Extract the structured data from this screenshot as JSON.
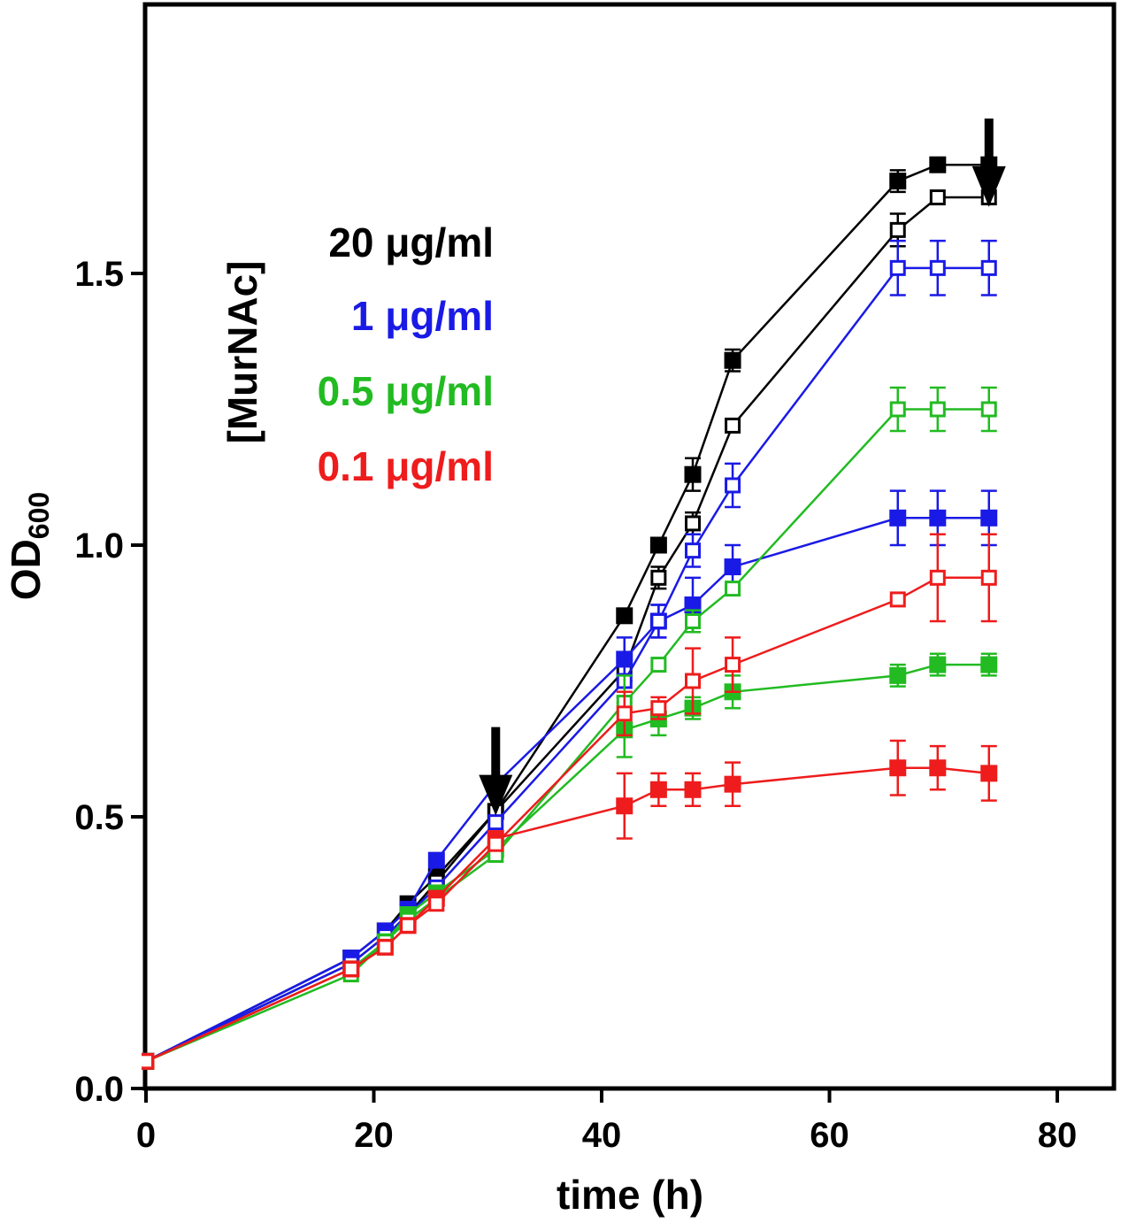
{
  "chart_data": {
    "type": "line",
    "title": "",
    "xlabel": "time (h)",
    "ylabel_main": "OD",
    "ylabel_sub": "600",
    "xlim": [
      0,
      85
    ],
    "ylim": [
      0,
      2.0
    ],
    "xticks": [
      0,
      20,
      40,
      60,
      80
    ],
    "xtick_labels": [
      "0",
      "20",
      "40",
      "60",
      "80"
    ],
    "yticks": [
      0.0,
      0.5,
      1.0,
      1.5
    ],
    "ytick_labels": [
      "0.0",
      "0.5",
      "1.0",
      "1.5"
    ],
    "grid": false,
    "legend_title": "[MurNAc]",
    "legend": [
      {
        "label": "20 μg/ml",
        "color": "#000000"
      },
      {
        "label": "1 μg/ml",
        "color": "#1a1ae6"
      },
      {
        "label": "0.5 μg/ml",
        "color": "#22bb22"
      },
      {
        "label": "0.1 μg/ml",
        "color": "#ee1c1c"
      }
    ],
    "arrows": [
      {
        "x": 30.7,
        "y": 0.6
      },
      {
        "x": 74.0,
        "y": 1.72
      }
    ],
    "series": [
      {
        "name": "20 μg/ml filled",
        "color": "#000000",
        "filled": true,
        "x": [
          0,
          18,
          21,
          23,
          25.5,
          30.7,
          42,
          45,
          48,
          51.5,
          66,
          69.5,
          74
        ],
        "y": [
          0.05,
          0.24,
          0.29,
          0.34,
          0.39,
          0.51,
          0.87,
          1.0,
          1.13,
          1.34,
          1.67,
          1.7,
          1.7
        ],
        "err": [
          0,
          0,
          0,
          0,
          0,
          0,
          0.01,
          0.01,
          0.03,
          0.02,
          0.02,
          0,
          0
        ]
      },
      {
        "name": "20 μg/ml open",
        "color": "#000000",
        "filled": false,
        "x": [
          0,
          18,
          21,
          23,
          25.5,
          30.7,
          42,
          45,
          48,
          51.5,
          66,
          69.5,
          74
        ],
        "y": [
          0.05,
          0.23,
          0.28,
          0.32,
          0.38,
          0.51,
          0.77,
          0.94,
          1.04,
          1.22,
          1.58,
          1.64,
          1.64
        ],
        "err": [
          0,
          0,
          0,
          0,
          0,
          0,
          0.02,
          0.02,
          0.02,
          0,
          0.03,
          0,
          0
        ]
      },
      {
        "name": "1 μg/ml filled",
        "color": "#1a1ae6",
        "filled": true,
        "x": [
          0,
          18,
          21,
          23,
          25.5,
          30.7,
          42,
          45,
          48,
          51.5,
          66,
          69.5,
          74
        ],
        "y": [
          0.05,
          0.24,
          0.29,
          0.33,
          0.42,
          0.56,
          0.79,
          0.86,
          0.89,
          0.96,
          1.05,
          1.05,
          1.05
        ],
        "err": [
          0,
          0,
          0,
          0,
          0,
          0,
          0.04,
          0.03,
          0.05,
          0.04,
          0.05,
          0.05,
          0.05
        ]
      },
      {
        "name": "1 μg/ml open",
        "color": "#1a1ae6",
        "filled": false,
        "x": [
          0,
          18,
          21,
          23,
          25.5,
          30.7,
          42,
          45,
          48,
          51.5,
          66,
          69.5,
          74
        ],
        "y": [
          0.05,
          0.23,
          0.28,
          0.32,
          0.37,
          0.49,
          0.75,
          0.86,
          0.99,
          1.11,
          1.51,
          1.51,
          1.51
        ],
        "err": [
          0,
          0,
          0,
          0,
          0,
          0,
          0.03,
          0.03,
          0.03,
          0.04,
          0.05,
          0.05,
          0.05
        ]
      },
      {
        "name": "0.5 μg/ml filled",
        "color": "#22bb22",
        "filled": true,
        "x": [
          0,
          18,
          21,
          23,
          25.5,
          30.7,
          42,
          45,
          48,
          51.5,
          66,
          69.5,
          74
        ],
        "y": [
          0.05,
          0.22,
          0.27,
          0.32,
          0.36,
          0.44,
          0.66,
          0.68,
          0.7,
          0.73,
          0.76,
          0.78,
          0.78
        ],
        "err": [
          0,
          0,
          0,
          0,
          0,
          0,
          0.05,
          0.03,
          0.02,
          0.03,
          0.02,
          0.02,
          0.02
        ]
      },
      {
        "name": "0.5 μg/ml open",
        "color": "#22bb22",
        "filled": false,
        "x": [
          0,
          18,
          21,
          23,
          25.5,
          30.7,
          42,
          45,
          48,
          51.5,
          66,
          69.5,
          74
        ],
        "y": [
          0.05,
          0.21,
          0.27,
          0.31,
          0.35,
          0.43,
          0.71,
          0.78,
          0.86,
          0.92,
          1.25,
          1.25,
          1.25
        ],
        "err": [
          0,
          0,
          0,
          0,
          0,
          0,
          0.05,
          0,
          0.02,
          0,
          0.04,
          0.04,
          0.04
        ]
      },
      {
        "name": "0.1 μg/ml filled",
        "color": "#ee1c1c",
        "filled": true,
        "x": [
          0,
          18,
          21,
          23,
          25.5,
          30.7,
          42,
          45,
          48,
          51.5,
          66,
          69.5,
          74
        ],
        "y": [
          0.05,
          0.22,
          0.26,
          0.3,
          0.35,
          0.46,
          0.52,
          0.55,
          0.55,
          0.56,
          0.59,
          0.59,
          0.58
        ],
        "err": [
          0,
          0,
          0,
          0,
          0,
          0,
          0.06,
          0.03,
          0.03,
          0.04,
          0.05,
          0.04,
          0.05
        ]
      },
      {
        "name": "0.1 μg/ml open",
        "color": "#ee1c1c",
        "filled": false,
        "x": [
          0,
          18,
          21,
          23,
          25.5,
          30.7,
          42,
          45,
          48,
          51.5,
          66,
          69.5,
          74
        ],
        "y": [
          0.05,
          0.22,
          0.26,
          0.3,
          0.34,
          0.45,
          0.69,
          0.7,
          0.75,
          0.78,
          0.9,
          0.94,
          0.94
        ],
        "err": [
          0,
          0,
          0,
          0,
          0,
          0,
          0.04,
          0.02,
          0.06,
          0.05,
          0,
          0.08,
          0.08
        ]
      }
    ]
  }
}
